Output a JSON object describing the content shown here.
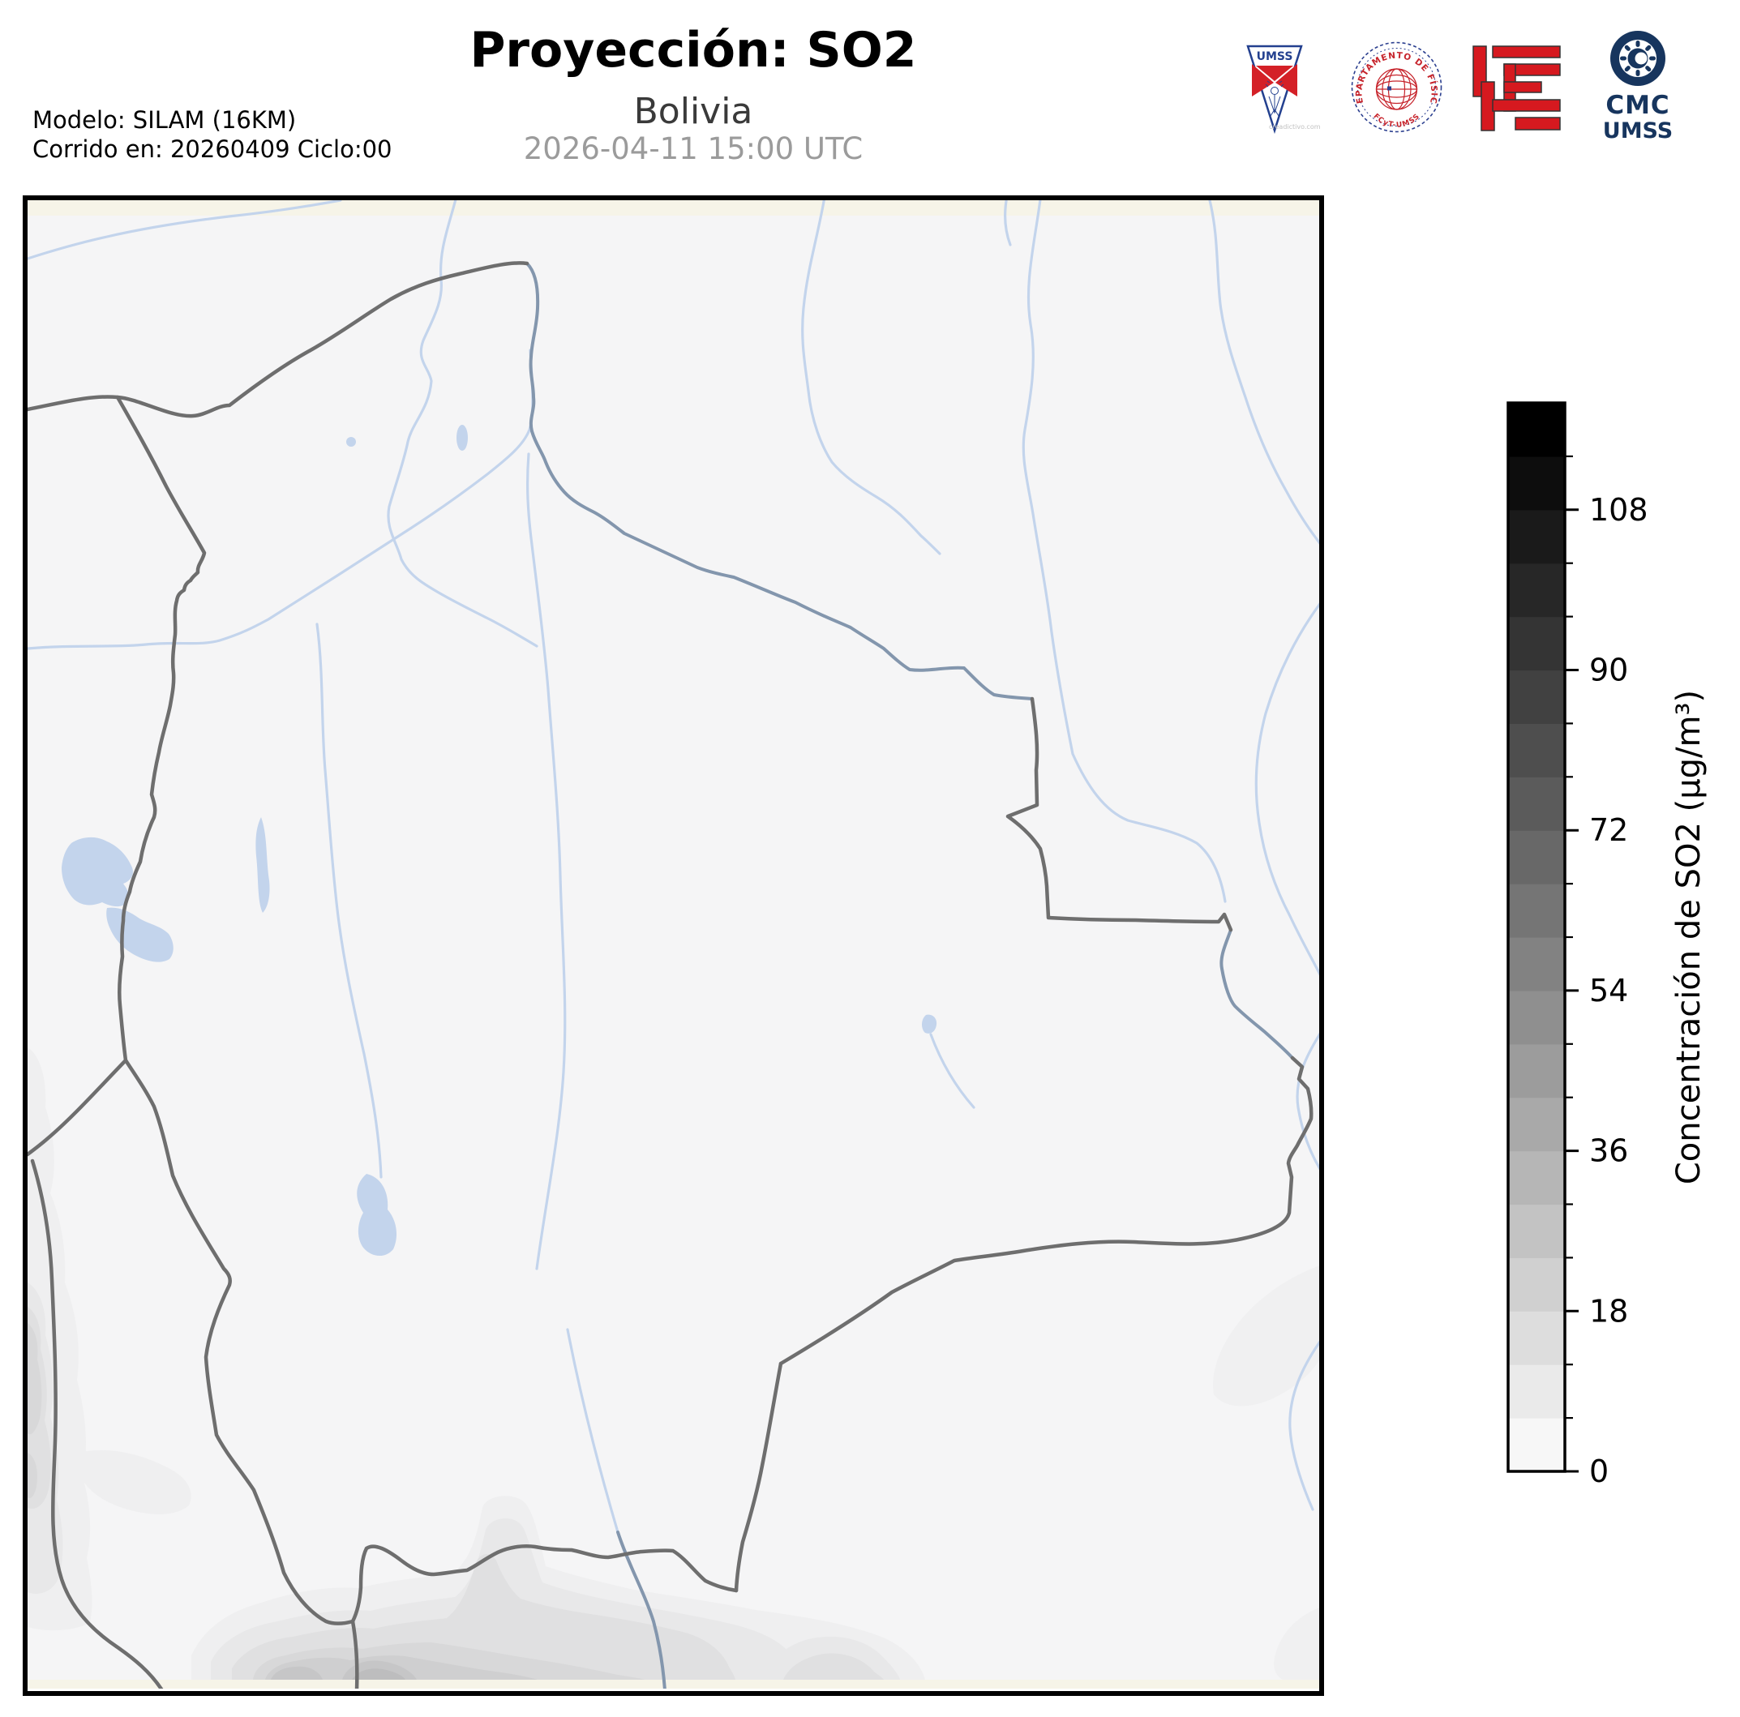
{
  "header": {
    "title": "Proyección: SO2",
    "subtitle": "Bolivia",
    "datetime": "2026-04-11 15:00 UTC",
    "model_line1": "Modelo: SILAM (16KM)",
    "model_line2": "Corrido en: 20260409 Ciclo:00"
  },
  "logos": {
    "umss_pennant": {
      "label": "UMSS",
      "watermark": "creadictivo.com"
    },
    "fisica_seal": {
      "top_text": "DEPARTAMENTO DE FÍSICA",
      "bottom_text": "FCyT-UMSS"
    },
    "cmc": {
      "line1": "CMC",
      "line2": "UMSS"
    }
  },
  "colorbar": {
    "label": "Concentración de SO2 (µg/m³)",
    "ticks": [
      "0",
      "18",
      "36",
      "54",
      "72",
      "90",
      "108"
    ],
    "tick_values": [
      0,
      18,
      36,
      54,
      72,
      90,
      108
    ],
    "value_min": 0,
    "value_max": 120,
    "segment_count": 20,
    "minor_tick_step": 6,
    "major_tick_step": 18,
    "color_low": "#f7f7f7",
    "color_high": "#000000"
  },
  "map": {
    "region": "Bolivia",
    "land_color": "#f5f5f6",
    "margin_color": "#f6f4e8",
    "river_color": "#c3d4ec",
    "river_border_color": "#8396ad",
    "border_color": "#6e6e6e",
    "plume_levels": [
      "#efeff0",
      "#e8e8e9",
      "#e0e0e1",
      "#d8d8d9",
      "#cfcfd0",
      "#c6c6c7",
      "#bdbdbe"
    ]
  }
}
